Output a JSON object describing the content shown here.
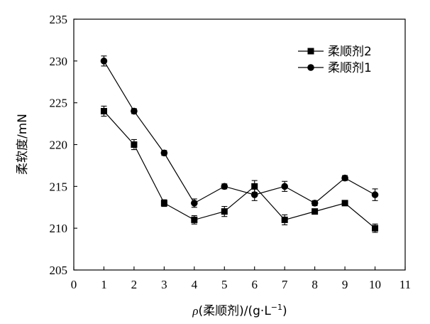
{
  "chart_data": {
    "type": "line",
    "title": "",
    "xlabel_prefix": "ρ",
    "xlabel_rest": "(柔顺剂)/(g·L",
    "xlabel_sup": "−1",
    "xlabel_end": ")",
    "ylabel": "柔软度/mN",
    "xlim": [
      0,
      11
    ],
    "ylim": [
      205,
      235
    ],
    "x_ticks": [
      "0",
      "1",
      "2",
      "3",
      "4",
      "5",
      "6",
      "7",
      "8",
      "9",
      "10",
      "11"
    ],
    "y_ticks": [
      "205",
      "210",
      "215",
      "220",
      "225",
      "230",
      "235"
    ],
    "x": [
      1,
      2,
      3,
      4,
      5,
      6,
      7,
      8,
      9,
      10
    ],
    "series": [
      {
        "name": "柔顺剂2",
        "marker": "square",
        "values": [
          224,
          220,
          213,
          211,
          212,
          215,
          211,
          212,
          213,
          210
        ],
        "errors": [
          0.6,
          0.6,
          0.4,
          0.5,
          0.6,
          0.7,
          0.6,
          0.3,
          0.3,
          0.5
        ]
      },
      {
        "name": "柔顺剂1",
        "marker": "circle",
        "values": [
          230,
          224,
          219,
          213,
          215,
          214,
          215,
          213,
          216,
          214
        ],
        "errors": [
          0.6,
          0.3,
          0.3,
          0.5,
          0.3,
          0.7,
          0.6,
          0.3,
          0.3,
          0.7
        ]
      }
    ],
    "legend_position": "top-right",
    "grid": false,
    "color": "#000000"
  }
}
